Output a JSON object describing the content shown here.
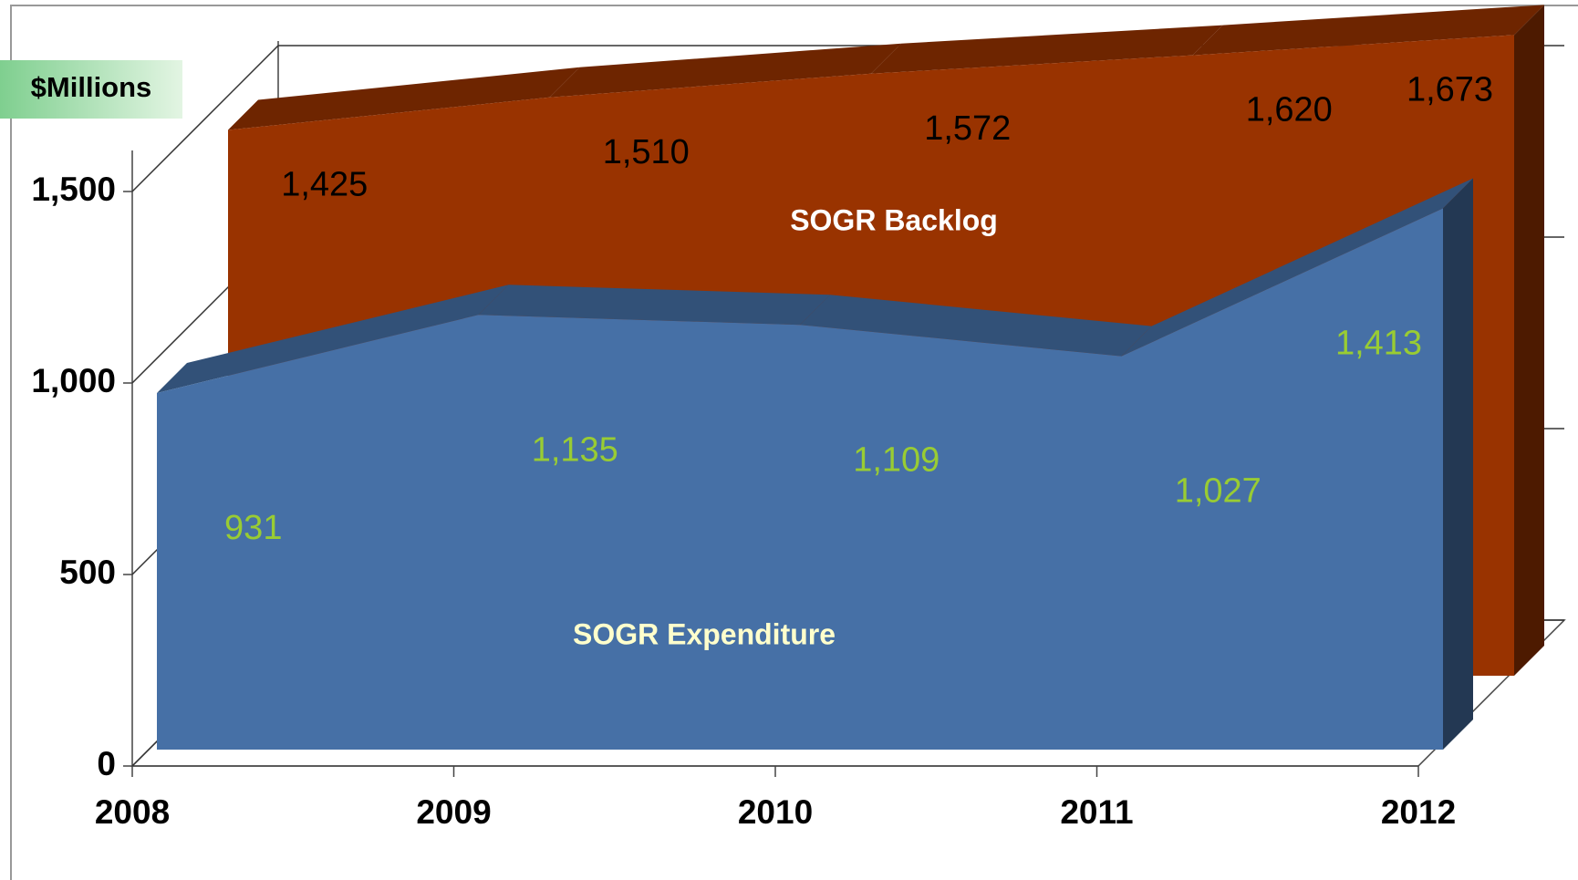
{
  "chart_data": {
    "type": "area3d",
    "y_label": "$Millions",
    "categories": [
      "2008",
      "2009",
      "2010",
      "2011",
      "2012"
    ],
    "ylim": [
      0,
      1750
    ],
    "yticks": [
      0,
      500,
      {
        "value": 1000,
        "label": "1,000"
      },
      {
        "value": 1500,
        "label": "1,500"
      }
    ],
    "series": [
      {
        "name": "SOGR Backlog",
        "color": "#993300",
        "label_color": "#000000",
        "values": [
          1425,
          1510,
          1572,
          1620,
          1673
        ],
        "value_labels": [
          "1,425",
          "1,510",
          "1,572",
          "1,620",
          "1,673"
        ]
      },
      {
        "name": "SOGR Expenditure",
        "color": "#4670a6",
        "label_color": "#99cc33",
        "values": [
          931,
          1135,
          1109,
          1027,
          1413
        ],
        "value_labels": [
          "931",
          "1,135",
          "1,109",
          "1,027",
          "1,413"
        ]
      }
    ]
  }
}
